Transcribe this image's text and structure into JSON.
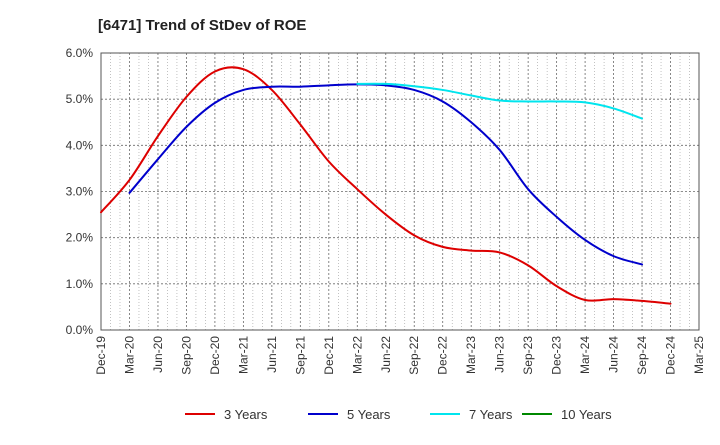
{
  "chart_data": {
    "type": "line",
    "title": "[6471]  Trend of StDev of ROE",
    "xlabel": "",
    "ylabel": "",
    "x_ticks": [
      "Dec-19",
      "Mar-20",
      "Jun-20",
      "Sep-20",
      "Dec-20",
      "Mar-21",
      "Jun-21",
      "Sep-21",
      "Dec-21",
      "Mar-22",
      "Jun-22",
      "Sep-22",
      "Dec-22",
      "Mar-23",
      "Jun-23",
      "Sep-23",
      "Dec-23",
      "Mar-24",
      "Jun-24",
      "Sep-24",
      "Dec-24",
      "Mar-25"
    ],
    "y_ticks": [
      "0.0%",
      "1.0%",
      "2.0%",
      "3.0%",
      "4.0%",
      "5.0%",
      "6.0%"
    ],
    "ylim": [
      0,
      6
    ],
    "grid": true,
    "legend_position": "bottom",
    "series": [
      {
        "name": "3 Years",
        "color": "#dd0000",
        "start_index": 0,
        "values": [
          2.55,
          3.25,
          4.2,
          5.05,
          5.6,
          5.65,
          5.2,
          4.45,
          3.65,
          3.05,
          2.5,
          2.05,
          1.8,
          1.72,
          1.68,
          1.4,
          0.95,
          0.65,
          0.67,
          0.63,
          0.57
        ]
      },
      {
        "name": "5 Years",
        "color": "#0000cc",
        "start_index": 1,
        "values": [
          2.97,
          3.7,
          4.4,
          4.92,
          5.2,
          5.27,
          5.27,
          5.3,
          5.32,
          5.3,
          5.2,
          4.95,
          4.5,
          3.9,
          3.05,
          2.45,
          1.95,
          1.6,
          1.42
        ]
      },
      {
        "name": "7 Years",
        "color": "#00e5ee",
        "start_index": 9,
        "values": [
          5.33,
          5.33,
          5.28,
          5.2,
          5.08,
          4.97,
          4.95,
          4.95,
          4.93,
          4.8,
          4.58
        ]
      },
      {
        "name": "10 Years",
        "color": "#008800",
        "start_index": 0,
        "values": []
      }
    ]
  }
}
